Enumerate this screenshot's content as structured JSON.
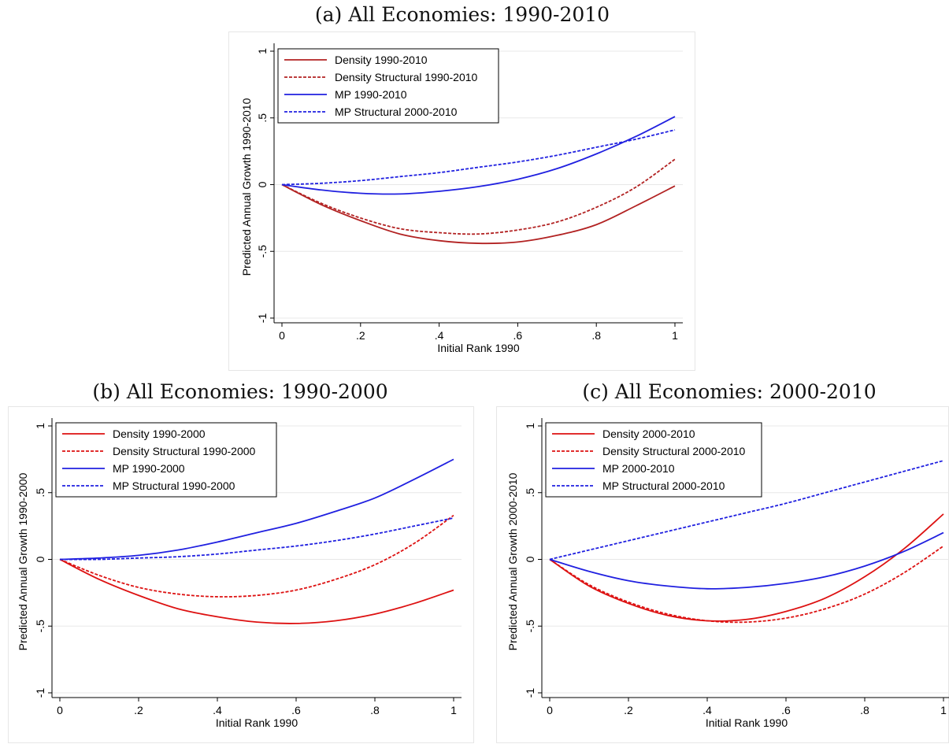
{
  "chart_data": [
    {
      "type": "line",
      "title": "(a) All Economies: 1990-2010",
      "xlabel": "Initial Rank 1990",
      "ylabel": "Predicted Annual Growth 1990-2010",
      "xlim": [
        0,
        1
      ],
      "ylim": [
        -1,
        1
      ],
      "xticks": [
        "0",
        ".2",
        ".4",
        ".6",
        ".8",
        "1"
      ],
      "yticks": [
        "-1",
        "-.5",
        "0",
        ".5",
        "1"
      ],
      "grid": true,
      "legend_position": "top-left",
      "x": [
        0,
        0.1,
        0.2,
        0.3,
        0.4,
        0.5,
        0.6,
        0.7,
        0.8,
        0.9,
        1.0
      ],
      "series": [
        {
          "name": "Density 1990-2010",
          "color": "#b22222",
          "dash": "solid",
          "values": [
            0,
            -0.15,
            -0.27,
            -0.37,
            -0.42,
            -0.44,
            -0.43,
            -0.38,
            -0.3,
            -0.16,
            -0.01
          ]
        },
        {
          "name": "Density Structural 1990-2010",
          "color": "#b22222",
          "dash": "dashed",
          "values": [
            0,
            -0.14,
            -0.25,
            -0.33,
            -0.36,
            -0.37,
            -0.34,
            -0.28,
            -0.17,
            -0.02,
            0.19
          ]
        },
        {
          "name": "MP 1990-2010",
          "color": "#2020e0",
          "dash": "solid",
          "values": [
            0,
            -0.04,
            -0.065,
            -0.07,
            -0.05,
            -0.015,
            0.04,
            0.12,
            0.23,
            0.36,
            0.51
          ]
        },
        {
          "name": "MP Structural 2000-2010",
          "color": "#2020e0",
          "dash": "dashed",
          "values": [
            0,
            0.01,
            0.03,
            0.06,
            0.09,
            0.13,
            0.17,
            0.22,
            0.28,
            0.34,
            0.41
          ]
        }
      ]
    },
    {
      "type": "line",
      "title": "(b) All Economies: 1990-2000",
      "xlabel": "Initial Rank 1990",
      "ylabel": "Predicted Annual Growth 1990-2000",
      "xlim": [
        0,
        1
      ],
      "ylim": [
        -1,
        1
      ],
      "xticks": [
        "0",
        ".2",
        ".4",
        ".6",
        ".8",
        "1"
      ],
      "yticks": [
        "-1",
        "-.5",
        "0",
        ".5",
        "1"
      ],
      "grid": true,
      "legend_position": "top-left",
      "x": [
        0,
        0.1,
        0.2,
        0.3,
        0.4,
        0.5,
        0.6,
        0.7,
        0.8,
        0.9,
        1.0
      ],
      "series": [
        {
          "name": "Density 1990-2000",
          "color": "#dd1111",
          "dash": "solid",
          "values": [
            0,
            -0.15,
            -0.27,
            -0.37,
            -0.43,
            -0.47,
            -0.48,
            -0.46,
            -0.41,
            -0.33,
            -0.23
          ]
        },
        {
          "name": "Density Structural 1990-2000",
          "color": "#dd1111",
          "dash": "dashed",
          "values": [
            0,
            -0.12,
            -0.21,
            -0.26,
            -0.28,
            -0.27,
            -0.23,
            -0.15,
            -0.04,
            0.12,
            0.33
          ]
        },
        {
          "name": "MP 1990-2000",
          "color": "#2020e0",
          "dash": "solid",
          "values": [
            0,
            0.01,
            0.03,
            0.07,
            0.13,
            0.2,
            0.27,
            0.36,
            0.46,
            0.6,
            0.75
          ]
        },
        {
          "name": "MP Structural 1990-2000",
          "color": "#2020e0",
          "dash": "dashed",
          "values": [
            0,
            0.0,
            0.01,
            0.02,
            0.04,
            0.07,
            0.1,
            0.14,
            0.19,
            0.25,
            0.31
          ]
        }
      ]
    },
    {
      "type": "line",
      "title": "(c) All Economies: 2000-2010",
      "xlabel": "Initial Rank 1990",
      "ylabel": "Predicted Annual Growth 2000-2010",
      "xlim": [
        0,
        1
      ],
      "ylim": [
        -1,
        1
      ],
      "xticks": [
        "0",
        ".2",
        ".4",
        ".6",
        ".8",
        "1"
      ],
      "yticks": [
        "-1",
        "-.5",
        "0",
        ".5",
        "1"
      ],
      "grid": true,
      "legend_position": "top-left",
      "x": [
        0,
        0.1,
        0.2,
        0.3,
        0.4,
        0.5,
        0.6,
        0.7,
        0.8,
        0.9,
        1.0
      ],
      "series": [
        {
          "name": "Density 2000-2010",
          "color": "#dd1111",
          "dash": "solid",
          "values": [
            0,
            -0.2,
            -0.33,
            -0.42,
            -0.46,
            -0.45,
            -0.39,
            -0.29,
            -0.13,
            0.08,
            0.34
          ]
        },
        {
          "name": "Density Structural 2000-2010",
          "color": "#dd1111",
          "dash": "dashed",
          "values": [
            0,
            -0.19,
            -0.32,
            -0.41,
            -0.46,
            -0.47,
            -0.44,
            -0.37,
            -0.26,
            -0.1,
            0.1
          ]
        },
        {
          "name": "MP 2000-2010",
          "color": "#2020e0",
          "dash": "solid",
          "values": [
            0,
            -0.09,
            -0.16,
            -0.2,
            -0.22,
            -0.21,
            -0.18,
            -0.13,
            -0.05,
            0.06,
            0.2
          ]
        },
        {
          "name": "MP Structural 2000-2010",
          "color": "#2020e0",
          "dash": "dashed",
          "values": [
            0,
            0.07,
            0.14,
            0.21,
            0.28,
            0.35,
            0.42,
            0.5,
            0.58,
            0.66,
            0.74
          ]
        }
      ]
    }
  ]
}
